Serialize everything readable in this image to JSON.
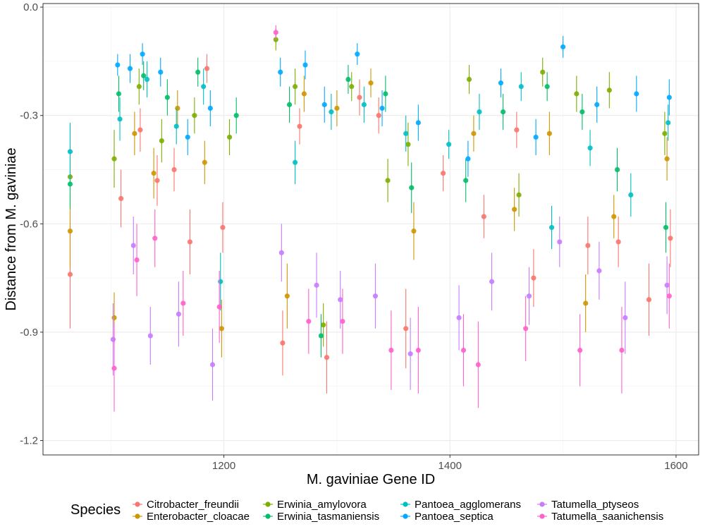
{
  "chart_data": {
    "type": "scatter",
    "title": "",
    "xlabel": "M. gaviniae Gene ID",
    "ylabel": "Distance from M. gaviniae",
    "xlim": [
      1040,
      1620
    ],
    "ylim": [
      -1.24,
      0.01
    ],
    "x_ticks": [
      1200,
      1400,
      1600
    ],
    "y_ticks": [
      0.0,
      -0.3,
      -0.6,
      -0.9,
      -1.2
    ],
    "x_tick_labels": [
      "1200",
      "1400",
      "1600"
    ],
    "y_tick_labels": [
      "0.0",
      "-0.3",
      "-0.6",
      "-0.9",
      "-1.2"
    ],
    "grid": true,
    "error_bars": true,
    "legend": {
      "title": "Species",
      "position": "bottom",
      "entries": [
        "Citrobacter_freundii",
        "Enterobacter_cloacae",
        "Erwinia_amylovora",
        "Erwinia_tasmaniensis",
        "Pantoea_agglomerans",
        "Pantoea_septica",
        "Tatumella_ptyseos",
        "Tatumella_saanichensis"
      ]
    },
    "series": [
      {
        "name": "Citrobacter_freundii",
        "color": "#F8766D",
        "points": [
          [
            1064,
            -0.74,
            0.15
          ],
          [
            1109,
            -0.53,
            0.08
          ],
          [
            1126,
            -0.34,
            0.06
          ],
          [
            1141,
            -0.48,
            0.07
          ],
          [
            1156,
            -0.45,
            0.06
          ],
          [
            1170,
            -0.65,
            0.09
          ],
          [
            1185,
            -0.17,
            0.04
          ],
          [
            1199,
            -0.61,
            0.07
          ],
          [
            1252,
            -0.93,
            0.09
          ],
          [
            1267,
            -0.33,
            0.05
          ],
          [
            1291,
            -0.97,
            0.1
          ],
          [
            1320,
            -0.25,
            0.05
          ],
          [
            1337,
            -0.3,
            0.05
          ],
          [
            1361,
            -0.89,
            0.11
          ],
          [
            1394,
            -0.46,
            0.05
          ],
          [
            1430,
            -0.58,
            0.06
          ],
          [
            1459,
            -0.34,
            0.05
          ],
          [
            1474,
            -0.75,
            0.08
          ],
          [
            1522,
            -0.66,
            0.08
          ],
          [
            1549,
            -0.65,
            0.07
          ],
          [
            1576,
            -0.81,
            0.1
          ],
          [
            1595,
            -0.64,
            0.08
          ]
        ]
      },
      {
        "name": "Enterobacter_cloacae",
        "color": "#CD9600",
        "points": [
          [
            1064,
            -0.62,
            0.1
          ],
          [
            1103,
            -0.86,
            0.07
          ],
          [
            1121,
            -0.35,
            0.06
          ],
          [
            1138,
            -0.46,
            0.07
          ],
          [
            1159,
            -0.28,
            0.05
          ],
          [
            1183,
            -0.43,
            0.06
          ],
          [
            1198,
            -0.89,
            0.08
          ],
          [
            1256,
            -0.8,
            0.09
          ],
          [
            1271,
            -0.24,
            0.05
          ],
          [
            1300,
            -0.28,
            0.05
          ],
          [
            1330,
            -0.21,
            0.04
          ],
          [
            1368,
            -0.62,
            0.08
          ],
          [
            1421,
            -0.35,
            0.05
          ],
          [
            1457,
            -0.56,
            0.06
          ],
          [
            1488,
            -0.35,
            0.06
          ],
          [
            1520,
            -0.82,
            0.08
          ],
          [
            1545,
            -0.58,
            0.06
          ],
          [
            1592,
            -0.42,
            0.06
          ]
        ]
      },
      {
        "name": "Erwinia_amylovora",
        "color": "#7CAE00",
        "points": [
          [
            1064,
            -0.47,
            0.07
          ],
          [
            1103,
            -0.42,
            0.08
          ],
          [
            1125,
            -0.22,
            0.05
          ],
          [
            1145,
            -0.37,
            0.06
          ],
          [
            1174,
            -0.3,
            0.05
          ],
          [
            1205,
            -0.36,
            0.05
          ],
          [
            1246,
            -0.09,
            0.03
          ],
          [
            1263,
            -0.22,
            0.05
          ],
          [
            1288,
            -0.88,
            0.06
          ],
          [
            1313,
            -0.22,
            0.04
          ],
          [
            1345,
            -0.48,
            0.06
          ],
          [
            1363,
            -0.38,
            0.06
          ],
          [
            1417,
            -0.2,
            0.04
          ],
          [
            1461,
            -0.52,
            0.06
          ],
          [
            1482,
            -0.18,
            0.04
          ],
          [
            1512,
            -0.24,
            0.05
          ],
          [
            1541,
            -0.23,
            0.05
          ],
          [
            1590,
            -0.35,
            0.06
          ]
        ]
      },
      {
        "name": "Erwinia_tasmaniensis",
        "color": "#00BE67",
        "points": [
          [
            1064,
            -0.49,
            0.07
          ],
          [
            1107,
            -0.24,
            0.05
          ],
          [
            1129,
            -0.19,
            0.04
          ],
          [
            1150,
            -0.25,
            0.05
          ],
          [
            1177,
            -0.18,
            0.04
          ],
          [
            1211,
            -0.3,
            0.05
          ],
          [
            1258,
            -0.27,
            0.05
          ],
          [
            1286,
            -0.91,
            0.06
          ],
          [
            1310,
            -0.2,
            0.04
          ],
          [
            1343,
            -0.24,
            0.05
          ],
          [
            1366,
            -0.5,
            0.07
          ],
          [
            1414,
            -0.48,
            0.06
          ],
          [
            1447,
            -0.29,
            0.05
          ],
          [
            1486,
            -0.22,
            0.04
          ],
          [
            1517,
            -0.29,
            0.05
          ],
          [
            1548,
            -0.45,
            0.06
          ],
          [
            1591,
            -0.61,
            0.07
          ]
        ]
      },
      {
        "name": "Pantoea_agglomerans",
        "color": "#00BFC4",
        "points": [
          [
            1064,
            -0.4,
            0.08
          ],
          [
            1108,
            -0.31,
            0.06
          ],
          [
            1132,
            -0.2,
            0.05
          ],
          [
            1158,
            -0.33,
            0.05
          ],
          [
            1182,
            -0.22,
            0.05
          ],
          [
            1197,
            -0.76,
            0.08
          ],
          [
            1263,
            -0.43,
            0.06
          ],
          [
            1295,
            -0.29,
            0.05
          ],
          [
            1324,
            -0.27,
            0.05
          ],
          [
            1361,
            -0.35,
            0.05
          ],
          [
            1399,
            -0.38,
            0.04
          ],
          [
            1426,
            -0.29,
            0.05
          ],
          [
            1463,
            -0.22,
            0.04
          ],
          [
            1490,
            -0.61,
            0.06
          ],
          [
            1524,
            -0.39,
            0.05
          ],
          [
            1560,
            -0.52,
            0.06
          ],
          [
            1593,
            -0.32,
            0.05
          ]
        ]
      },
      {
        "name": "Pantoea_septica",
        "color": "#00A9FF",
        "points": [
          [
            1106,
            -0.16,
            0.03
          ],
          [
            1117,
            -0.17,
            0.04
          ],
          [
            1128,
            -0.13,
            0.03
          ],
          [
            1144,
            -0.18,
            0.04
          ],
          [
            1168,
            -0.36,
            0.05
          ],
          [
            1188,
            -0.28,
            0.05
          ],
          [
            1250,
            -0.18,
            0.04
          ],
          [
            1272,
            -0.16,
            0.04
          ],
          [
            1289,
            -0.27,
            0.05
          ],
          [
            1318,
            -0.13,
            0.03
          ],
          [
            1340,
            -0.28,
            0.05
          ],
          [
            1372,
            -0.32,
            0.05
          ],
          [
            1416,
            -0.42,
            0.05
          ],
          [
            1445,
            -0.21,
            0.04
          ],
          [
            1476,
            -0.36,
            0.05
          ],
          [
            1500,
            -0.11,
            0.03
          ],
          [
            1530,
            -0.27,
            0.05
          ],
          [
            1565,
            -0.24,
            0.05
          ],
          [
            1594,
            -0.25,
            0.05
          ]
        ]
      },
      {
        "name": "Tatumella_ptyseos",
        "color": "#C77CFF",
        "points": [
          [
            1102,
            -0.92,
            0.1
          ],
          [
            1120,
            -0.66,
            0.08
          ],
          [
            1135,
            -0.91,
            0.08
          ],
          [
            1160,
            -0.85,
            0.09
          ],
          [
            1190,
            -0.99,
            0.1
          ],
          [
            1251,
            -0.68,
            0.08
          ],
          [
            1282,
            -0.77,
            0.09
          ],
          [
            1303,
            -0.81,
            0.08
          ],
          [
            1334,
            -0.8,
            0.09
          ],
          [
            1365,
            -0.96,
            0.1
          ],
          [
            1408,
            -0.86,
            0.09
          ],
          [
            1437,
            -0.76,
            0.08
          ],
          [
            1470,
            -0.8,
            0.08
          ],
          [
            1497,
            -0.65,
            0.07
          ],
          [
            1532,
            -0.73,
            0.08
          ],
          [
            1555,
            -0.86,
            0.1
          ],
          [
            1592,
            -0.77,
            0.08
          ]
        ]
      },
      {
        "name": "Tatumella_saanichensis",
        "color": "#FF61CC",
        "points": [
          [
            1103,
            -1.0,
            0.12
          ],
          [
            1123,
            -0.7,
            0.1
          ],
          [
            1139,
            -0.64,
            0.08
          ],
          [
            1164,
            -0.82,
            0.09
          ],
          [
            1196,
            -0.83,
            0.1
          ],
          [
            1246,
            -0.07,
            0.02
          ],
          [
            1275,
            -0.87,
            0.09
          ],
          [
            1305,
            -0.87,
            0.09
          ],
          [
            1348,
            -0.95,
            0.11
          ],
          [
            1372,
            -0.95,
            0.12
          ],
          [
            1412,
            -0.95,
            0.1
          ],
          [
            1425,
            -0.99,
            0.12
          ],
          [
            1467,
            -0.89,
            0.09
          ],
          [
            1515,
            -0.95,
            0.1
          ],
          [
            1552,
            -0.95,
            0.12
          ],
          [
            1594,
            -0.8,
            0.09
          ]
        ]
      }
    ]
  }
}
